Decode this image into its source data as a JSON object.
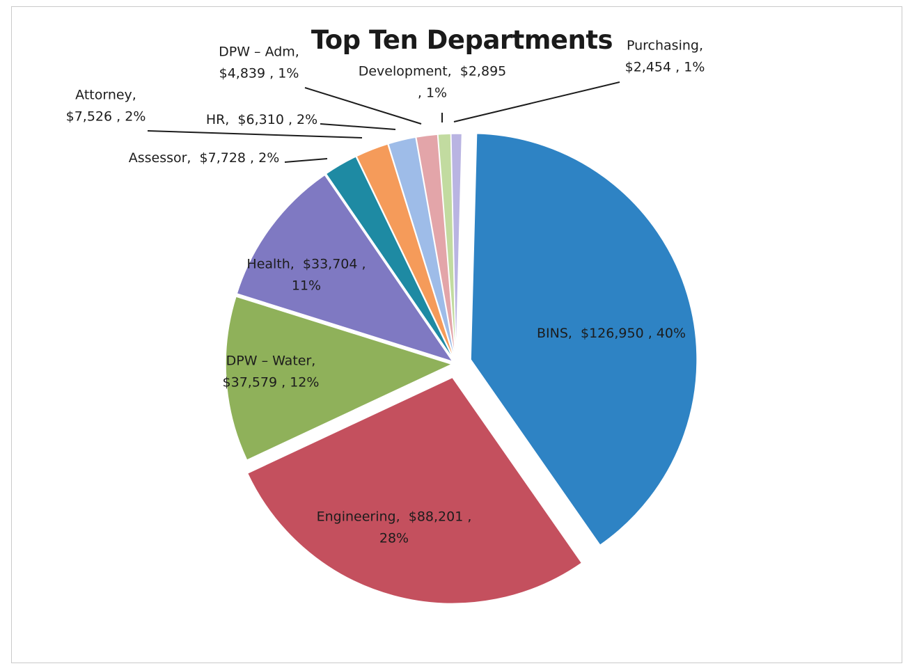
{
  "chart_data": {
    "type": "pie",
    "title": "Top Ten Departments",
    "slices": [
      {
        "name": "BINS",
        "value": 126950,
        "percent": 40,
        "color": "#2e83c4",
        "label_lines": [
          "BINS,  $126,950 , 40%"
        ]
      },
      {
        "name": "Engineering",
        "value": 88201,
        "percent": 28,
        "color": "#c4505e",
        "label_lines": [
          "Engineering,  $88,201 ,",
          "28%"
        ]
      },
      {
        "name": "DPW – Water",
        "value": 37579,
        "percent": 12,
        "color": "#8fb15a",
        "label_lines": [
          "DPW – Water,",
          "$37,579 , 12%"
        ]
      },
      {
        "name": "Health",
        "value": 33704,
        "percent": 11,
        "color": "#7f79c2",
        "label_lines": [
          "Health,  $33,704 ,",
          "11%"
        ]
      },
      {
        "name": "Assessor",
        "value": 7728,
        "percent": 2,
        "color": "#1e8aa3",
        "label_lines": [
          "Assessor,  $7,728 , 2%"
        ]
      },
      {
        "name": "Attorney",
        "value": 7526,
        "percent": 2,
        "color": "#f59b5a",
        "label_lines": [
          "Attorney,",
          "$7,526 , 2%"
        ]
      },
      {
        "name": "HR",
        "value": 6310,
        "percent": 2,
        "color": "#9ebce8",
        "label_lines": [
          "HR,  $6,310 , 2%"
        ]
      },
      {
        "name": "DPW – Adm",
        "value": 4839,
        "percent": 1,
        "color": "#e3a5a9",
        "label_lines": [
          "DPW – Adm,",
          "$4,839 , 1%"
        ]
      },
      {
        "name": "Development",
        "value": 2895,
        "percent": 1,
        "color": "#c2dba0",
        "label_lines": [
          "Development,  $2,895",
          ", 1%"
        ]
      },
      {
        "name": "Purchasing",
        "value": 2454,
        "percent": 1,
        "color": "#b9b4e2",
        "label_lines": [
          "Purchasing,",
          "$2,454 , 1%"
        ]
      }
    ]
  }
}
